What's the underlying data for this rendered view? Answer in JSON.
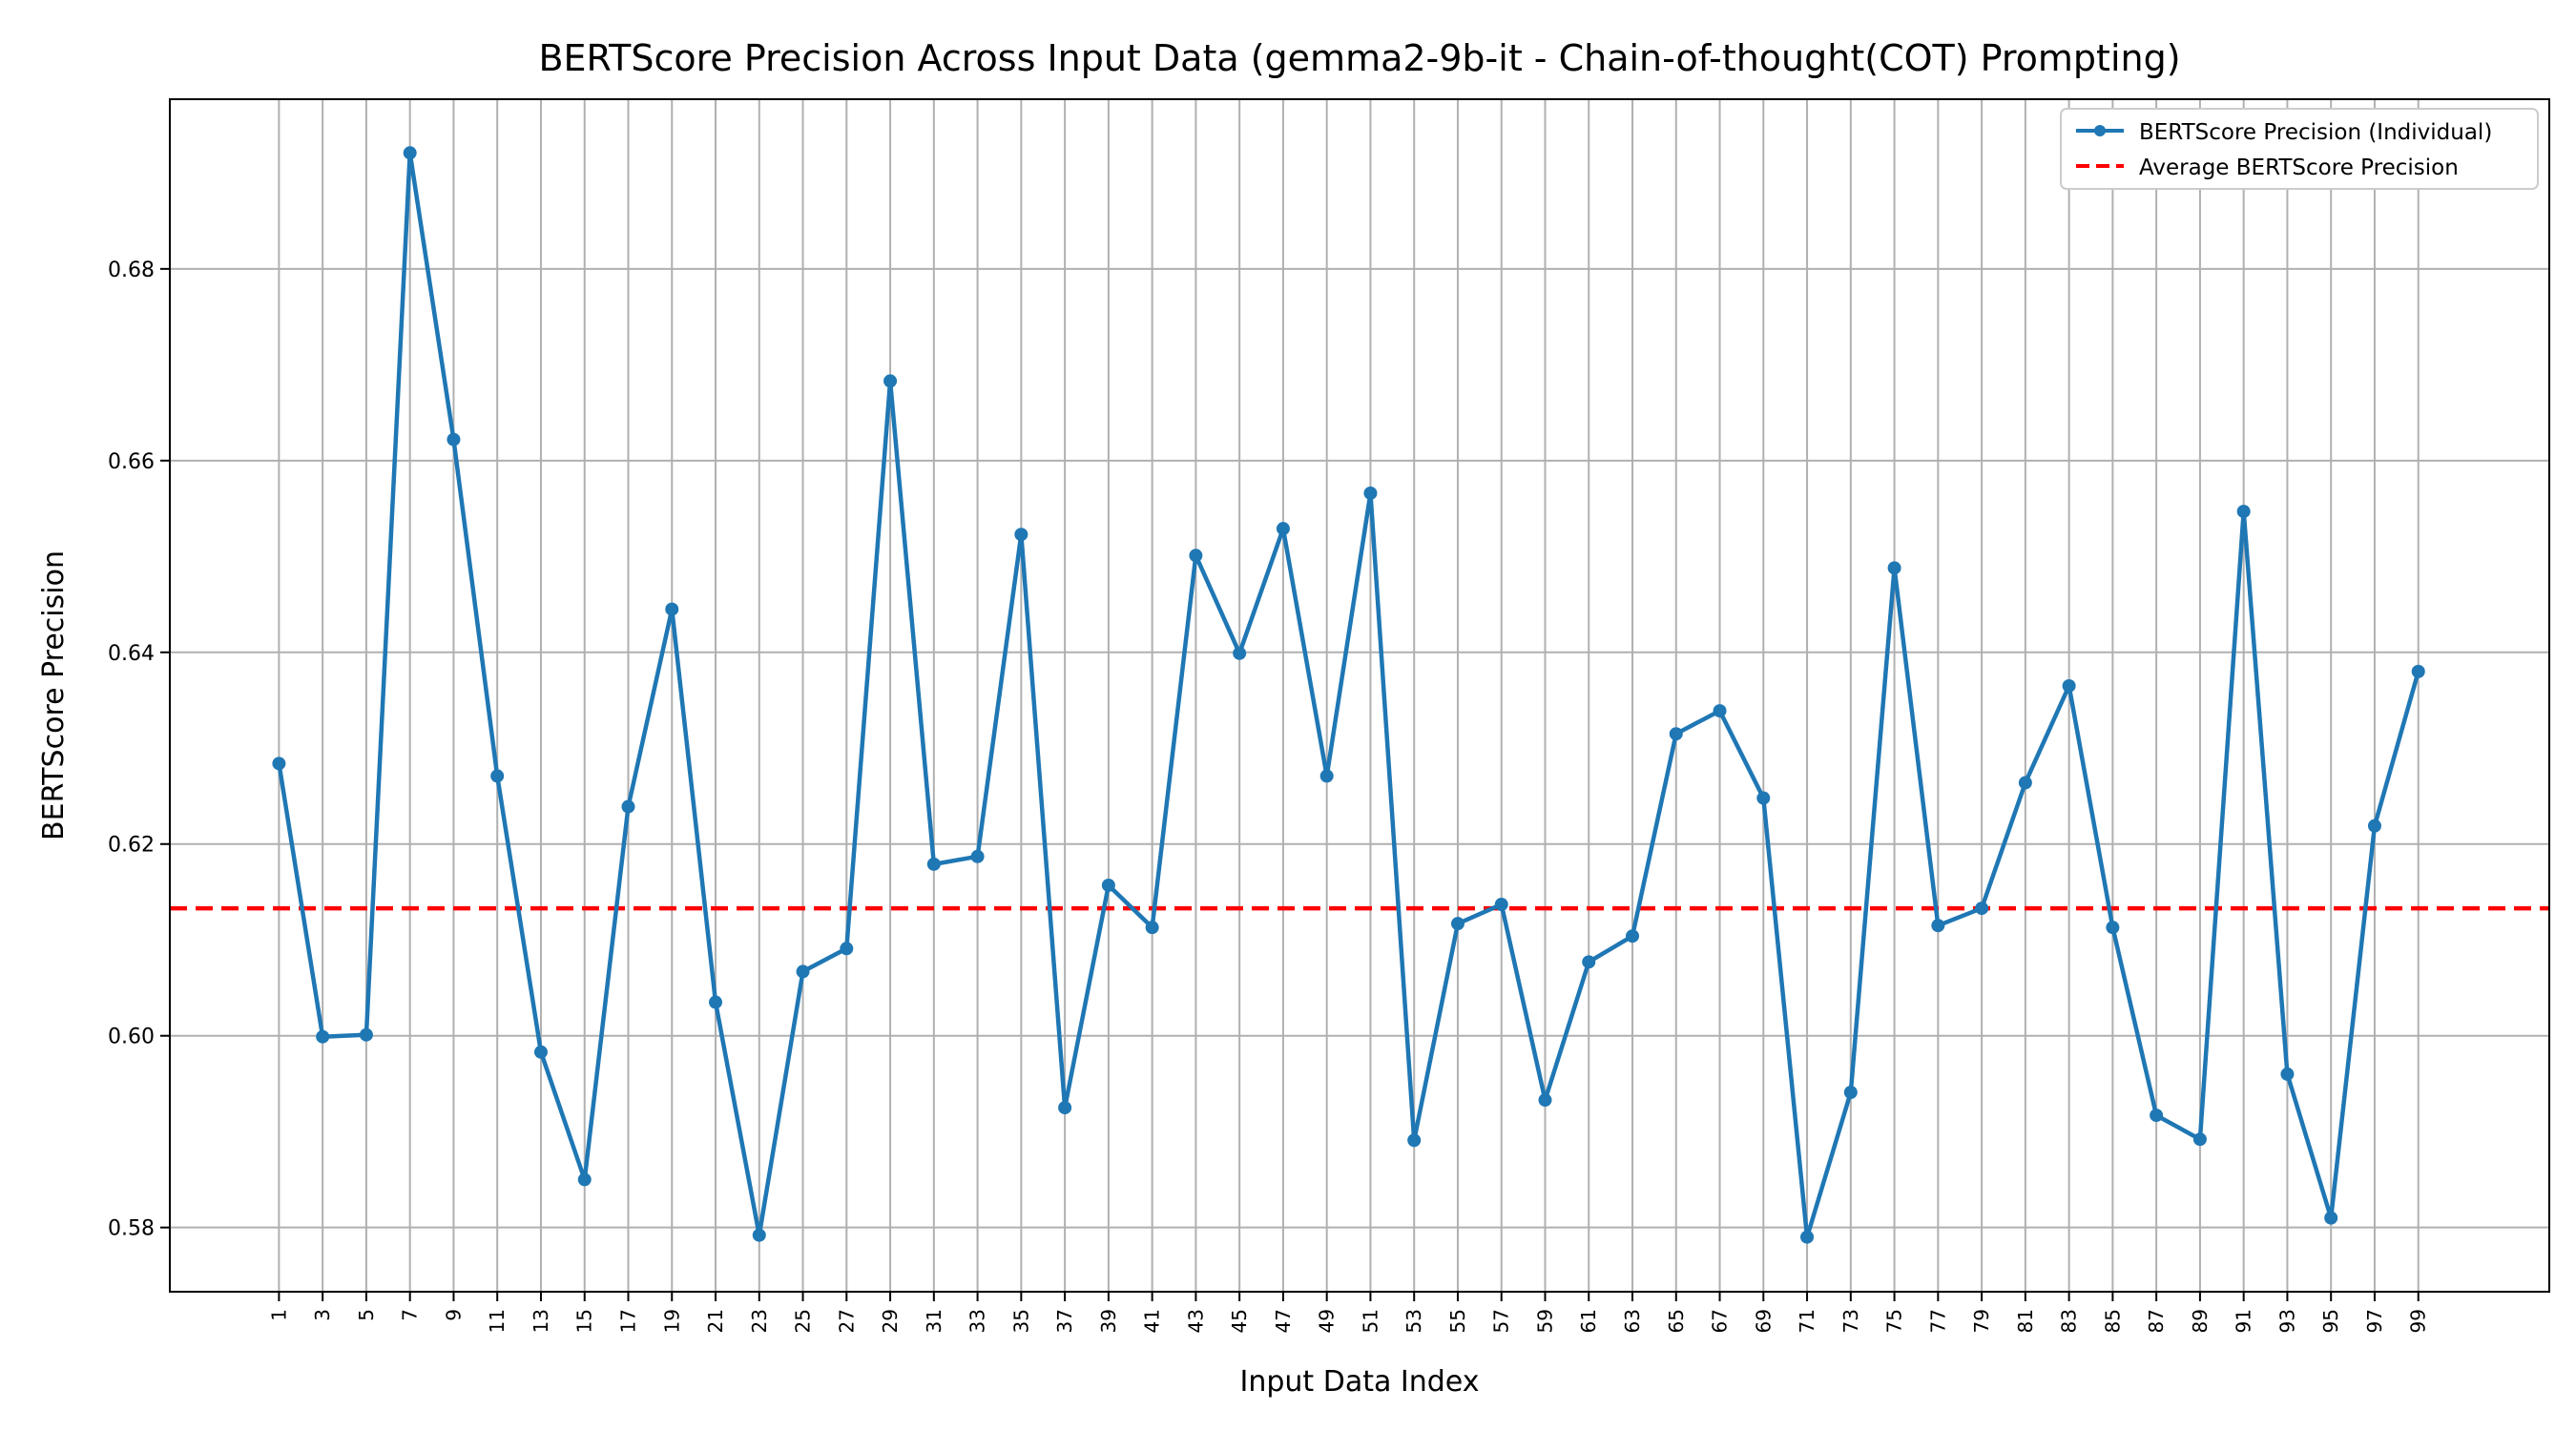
{
  "chart_data": {
    "type": "line",
    "title": "BERTScore Precision Across Input Data (gemma2-9b-it - Chain-of-thought(COT) Prompting)",
    "xlabel": "Input Data Index",
    "ylabel": "BERTScore Precision",
    "x": [
      1,
      3,
      5,
      7,
      9,
      11,
      13,
      15,
      17,
      19,
      21,
      23,
      25,
      27,
      29,
      31,
      33,
      35,
      37,
      39,
      41,
      43,
      45,
      47,
      49,
      51,
      53,
      55,
      57,
      59,
      61,
      63,
      65,
      67,
      69,
      71,
      73,
      75,
      77,
      79,
      81,
      83,
      85,
      87,
      89,
      91,
      93,
      95,
      97,
      99
    ],
    "x_tick_labels": [
      "1",
      "3",
      "5",
      "7",
      "9",
      "11",
      "13",
      "15",
      "17",
      "19",
      "21",
      "23",
      "25",
      "27",
      "29",
      "31",
      "33",
      "35",
      "37",
      "39",
      "41",
      "43",
      "45",
      "47",
      "49",
      "51",
      "53",
      "55",
      "57",
      "59",
      "61",
      "63",
      "65",
      "67",
      "69",
      "71",
      "73",
      "75",
      "77",
      "79",
      "81",
      "83",
      "85",
      "87",
      "89",
      "91",
      "93",
      "95",
      "97",
      "99"
    ],
    "xlim": [
      -4,
      105
    ],
    "ylim": [
      0.5733,
      0.6977
    ],
    "y_ticks": [
      0.58,
      0.6,
      0.62,
      0.64,
      0.66,
      0.68
    ],
    "y_tick_labels": [
      "0.58",
      "0.60",
      "0.62",
      "0.64",
      "0.66",
      "0.68"
    ],
    "grid": true,
    "legend_position": "top-right",
    "series": [
      {
        "name": "BERTScore Precision (Individual)",
        "color": "#1f77b4",
        "style": "solid-with-markers",
        "values": [
          0.6284,
          0.5999,
          0.6001,
          0.6921,
          0.6622,
          0.6271,
          0.5983,
          0.585,
          0.6239,
          0.6445,
          0.6035,
          0.5792,
          0.6067,
          0.6091,
          0.6683,
          0.6179,
          0.6187,
          0.6523,
          0.5925,
          0.6157,
          0.6113,
          0.6501,
          0.6399,
          0.6529,
          0.6271,
          0.6566,
          0.5891,
          0.6117,
          0.6137,
          0.5933,
          0.6077,
          0.6104,
          0.6315,
          0.6339,
          0.6248,
          0.579,
          0.5941,
          0.6488,
          0.6115,
          0.6133,
          0.6264,
          0.6365,
          0.6113,
          0.5917,
          0.5892,
          0.6547,
          0.596,
          0.581,
          0.6219,
          0.638
        ]
      },
      {
        "name": "Average BERTScore Precision",
        "color": "#ff0000",
        "style": "dashed",
        "value": 0.6133
      }
    ]
  }
}
